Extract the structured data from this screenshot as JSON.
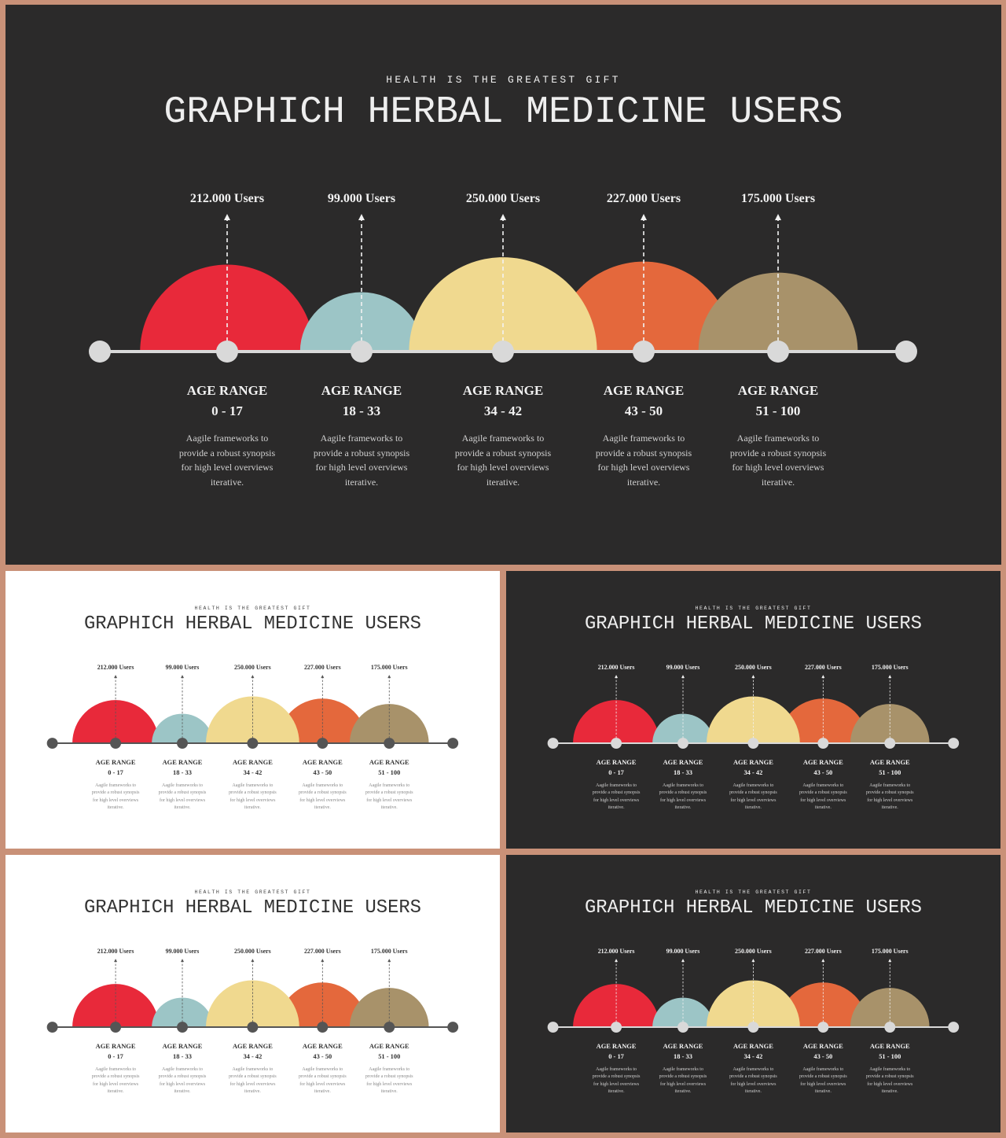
{
  "kicker": "HEALTH IS THE GREATEST GIFT",
  "title": "GRAPHICH HERBAL MEDICINE USERS",
  "colors": {
    "dark_bg": "#2b2a2a",
    "light_bg": "#ffffff",
    "frame": "#c99178",
    "red": "#e8293a",
    "blue": "#9cc5c6",
    "yellow": "#f0d98f",
    "orange": "#e4683c",
    "khaki": "#a8926a"
  },
  "chart_data": {
    "type": "bar",
    "series": [
      {
        "users_label": "212.000 Users",
        "value": 212000,
        "heading": "AGE RANGE",
        "range": "0 - 17",
        "color": "#e8293a",
        "description": [
          "Aagile frameworks to",
          "provide a robust synopsis",
          "for high level overviews",
          "iterative."
        ]
      },
      {
        "users_label": "99.000 Users",
        "value": 99000,
        "heading": "AGE RANGE",
        "range": "18 - 33",
        "color": "#9cc5c6",
        "description": [
          "Aagile frameworks to",
          "provide a robust synopsis",
          "for high level overviews",
          "iterative."
        ]
      },
      {
        "users_label": "250.000 Users",
        "value": 250000,
        "heading": "AGE RANGE",
        "range": "34 - 42",
        "color": "#f0d98f",
        "description": [
          "Aagile frameworks to",
          "provide a robust synopsis",
          "for high level overviews",
          "iterative."
        ]
      },
      {
        "users_label": "227.000 Users",
        "value": 227000,
        "heading": "AGE RANGE",
        "range": "43 - 50",
        "color": "#e4683c",
        "description": [
          "Aagile frameworks to",
          "provide a robust synopsis",
          "for high level overviews",
          "iterative."
        ]
      },
      {
        "users_label": "175.000 Users",
        "value": 175000,
        "heading": "AGE RANGE",
        "range": "51 - 100",
        "color": "#a8926a",
        "description": [
          "Aagile frameworks to",
          "provide a robust synopsis",
          "for high level overviews",
          "iterative."
        ]
      }
    ]
  },
  "slides": [
    {
      "theme": "dark"
    },
    {
      "theme": "light"
    },
    {
      "theme": "dark"
    },
    {
      "theme": "light"
    },
    {
      "theme": "dark"
    }
  ]
}
